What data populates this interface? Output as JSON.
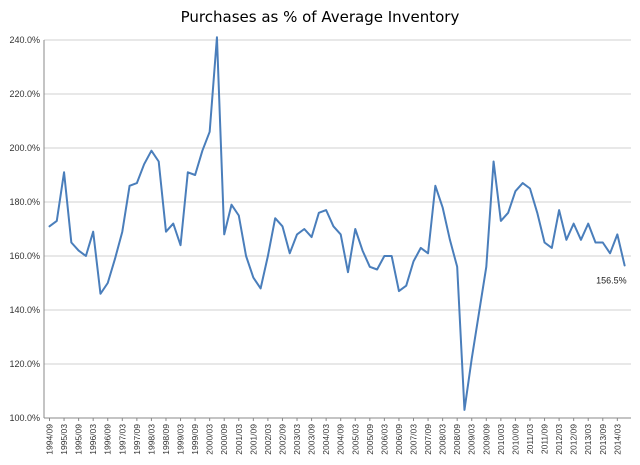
{
  "chart_data": {
    "type": "line",
    "title": "Purchases as % of Average Inventory",
    "xlabel": "",
    "ylabel": "",
    "ylim": [
      100,
      240
    ],
    "y_ticks": [
      "100.0%",
      "120.0%",
      "140.0%",
      "160.0%",
      "180.0%",
      "200.0%",
      "220.0%",
      "240.0%"
    ],
    "y_tick_values": [
      100,
      120,
      140,
      160,
      180,
      200,
      220,
      240
    ],
    "grid": true,
    "legend": "none",
    "x_tick_labels": [
      "1994/09",
      "1995/03",
      "1995/09",
      "1996/03",
      "1996/09",
      "1997/03",
      "1997/09",
      "1998/03",
      "1998/09",
      "1999/03",
      "1999/09",
      "2000/03",
      "2000/09",
      "2001/03",
      "2001/09",
      "2002/03",
      "2002/09",
      "2003/03",
      "2003/09",
      "2004/03",
      "2004/09",
      "2005/03",
      "2005/09",
      "2006/03",
      "2006/09",
      "2007/03",
      "2007/09",
      "2008/03",
      "2008/09",
      "2009/03",
      "2009/09",
      "2010/03",
      "2010/09",
      "2011/03",
      "2011/09",
      "2012/03",
      "2012/09",
      "2013/03",
      "2013/09",
      "2014/03"
    ],
    "series": [
      {
        "name": "",
        "color": "#4a7ebb",
        "values": [
          171,
          173,
          191,
          165,
          162,
          160,
          169,
          146,
          150,
          159,
          169,
          186,
          187,
          194,
          199,
          195,
          169,
          172,
          164,
          191,
          190,
          199,
          206,
          241,
          168,
          179,
          175,
          160,
          152,
          148,
          160,
          174,
          171,
          161,
          168,
          170,
          167,
          176,
          177,
          171,
          168,
          154,
          170,
          162,
          156,
          155,
          160,
          160,
          147,
          149,
          158,
          163,
          161,
          186,
          178,
          166,
          156,
          103,
          122,
          139,
          156,
          195,
          173,
          176,
          184,
          187,
          185,
          176,
          165,
          163,
          177,
          166,
          172,
          166,
          172,
          165,
          165,
          161,
          168,
          156.5
        ]
      }
    ],
    "data_labels": [
      {
        "point_index": 79,
        "text": "156.5%"
      }
    ]
  }
}
